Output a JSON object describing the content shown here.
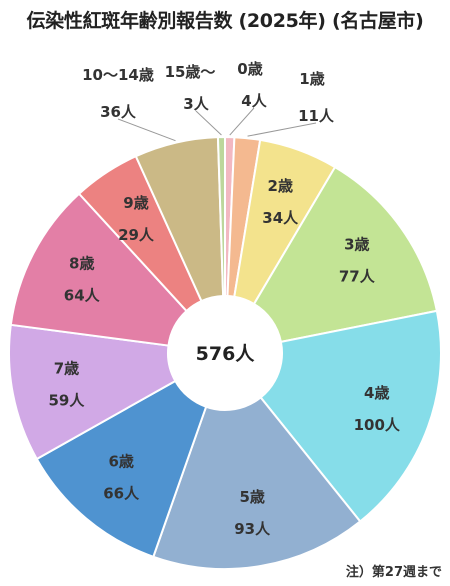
{
  "chart_data": {
    "type": "pie",
    "title": "伝染性紅斑年齢別報告数 (2025年) (名古屋市)",
    "center_label": "576人",
    "footnote": "注）第27週まで",
    "slices": [
      {
        "category": "0歳",
        "value": 4,
        "value_label": "4人",
        "color": "#f2b8c1"
      },
      {
        "category": "1歳",
        "value": 11,
        "value_label": "11人",
        "color": "#f4b990"
      },
      {
        "category": "2歳",
        "value": 34,
        "value_label": "34人",
        "color": "#f3e38d"
      },
      {
        "category": "3歳",
        "value": 77,
        "value_label": "77人",
        "color": "#c3e495"
      },
      {
        "category": "4歳",
        "value": 100,
        "value_label": "100人",
        "color": "#86dde9"
      },
      {
        "category": "5歳",
        "value": 93,
        "value_label": "93人",
        "color": "#92b0d1"
      },
      {
        "category": "6歳",
        "value": 66,
        "value_label": "66人",
        "color": "#4f93d0"
      },
      {
        "category": "7歳",
        "value": 59,
        "value_label": "59人",
        "color": "#d1a9e6"
      },
      {
        "category": "8歳",
        "value": 64,
        "value_label": "64人",
        "color": "#e37fa6"
      },
      {
        "category": "9歳",
        "value": 29,
        "value_label": "29人",
        "color": "#ec8281"
      },
      {
        "category": "10〜14歳",
        "value": 36,
        "value_label": "36人",
        "color": "#cbb986"
      },
      {
        "category": "15歳〜",
        "value": 3,
        "value_label": "3人",
        "color": "#bcd79c"
      }
    ]
  }
}
